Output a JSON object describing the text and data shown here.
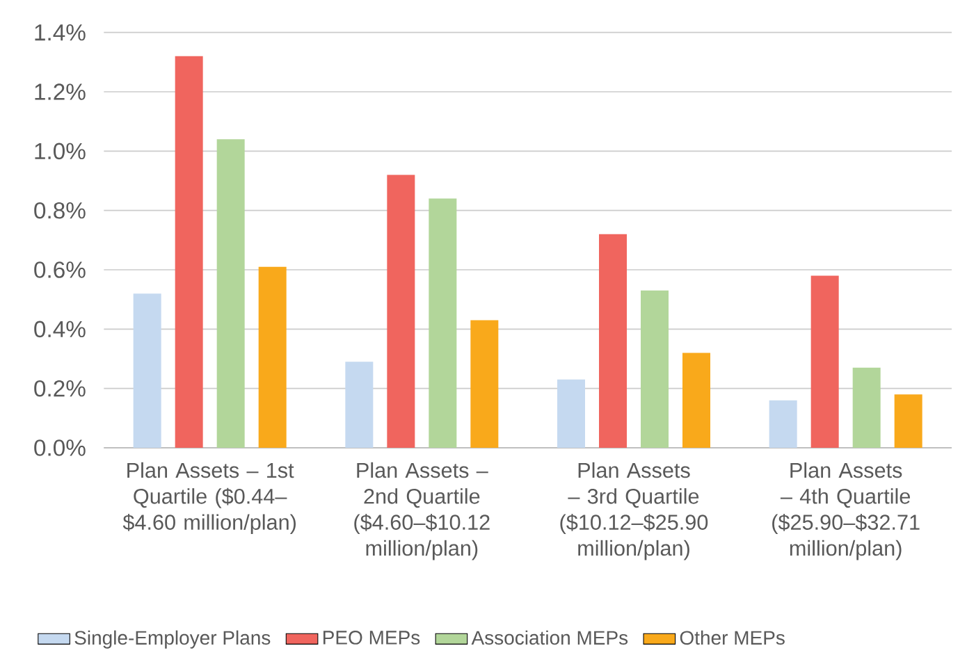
{
  "chart_data": {
    "type": "bar",
    "categories": [
      "Plan Assets – 1st Quartile ($0.44–$4.60 million/plan)",
      "Plan Assets – 2nd Quartile ($4.60–$10.12 million/plan)",
      "Plan Assets – 3rd Quartile ($10.12–$25.90 million/plan)",
      "Plan Assets – 4th Quartile ($25.90–$32.71 million/plan)"
    ],
    "series": [
      {
        "name": "Single-Employer Plans",
        "color": "#c5d9f0",
        "values": [
          0.52,
          0.29,
          0.23,
          0.16
        ]
      },
      {
        "name": "PEO MEPs",
        "color": "#f0655e",
        "values": [
          1.32,
          0.92,
          0.72,
          0.58
        ]
      },
      {
        "name": "Association MEPs",
        "color": "#b2d69a",
        "values": [
          1.04,
          0.84,
          0.53,
          0.27
        ]
      },
      {
        "name": "Other MEPs",
        "color": "#f9a91b",
        "values": [
          0.61,
          0.43,
          0.32,
          0.18
        ]
      }
    ],
    "ylim": [
      0,
      1.4
    ],
    "yticks": [
      {
        "value": 0,
        "label": "0.0%"
      },
      {
        "value": 0.2,
        "label": "0.2%"
      },
      {
        "value": 0.4,
        "label": "0.4%"
      },
      {
        "value": 0.6,
        "label": "0.6%"
      },
      {
        "value": 0.8,
        "label": "0.8%"
      },
      {
        "value": 1.0,
        "label": "1.0%"
      },
      {
        "value": 1.2,
        "label": "1.2%"
      },
      {
        "value": 1.4,
        "label": "1.4%"
      }
    ],
    "grid": "y",
    "legend": "bottom"
  }
}
